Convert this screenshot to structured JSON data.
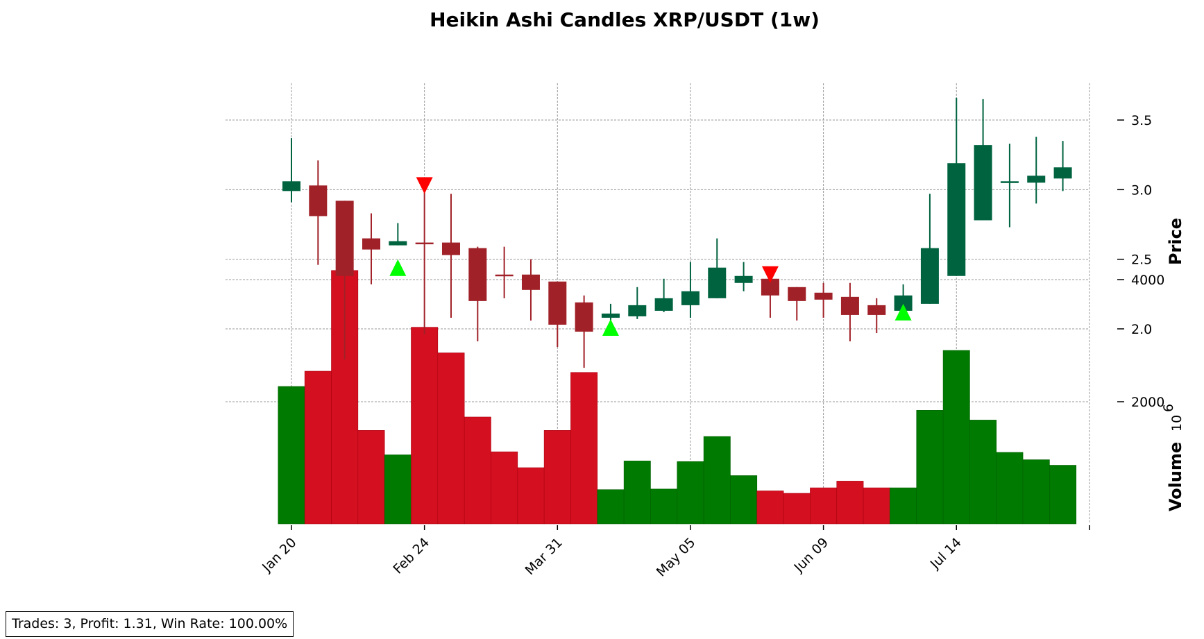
{
  "figure": {
    "title": "Heikin Ashi Candles XRP/USDT (1w)",
    "price_label": "Price",
    "volume_label": "Volume",
    "volume_multiplier_label": "10",
    "volume_multiplier_exponent": "6",
    "stats_text": "Trades: 3, Profit: 1.31, Win Rate: 100.00%"
  },
  "colors": {
    "up_candle": "#006340",
    "down_candle": "#A02128",
    "up_volume": "#007A00",
    "down_volume": "#D41020",
    "buy_marker": "#00FF00",
    "sell_marker": "#FF0000",
    "grid": "#999999"
  },
  "chart_data": {
    "type": "candlestick",
    "title": "Heikin Ashi Candles XRP/USDT (1w)",
    "ylabel": "Price",
    "ylabel_volume": "Volume",
    "volume_scale": "10^6",
    "price_ylim": [
      1.6,
      3.75
    ],
    "volume_ylim": [
      0,
      4000
    ],
    "price_ticks": [
      "2.0",
      "2.5",
      "3.0",
      "3.5"
    ],
    "volume_ticks": [
      "2000",
      "4000"
    ],
    "grid": true,
    "x_tick_labels": [
      {
        "index": 0,
        "label": "Jan 20"
      },
      {
        "index": 5,
        "label": "Feb 24"
      },
      {
        "index": 10,
        "label": "Mar 31"
      },
      {
        "index": 15,
        "label": "May 05"
      },
      {
        "index": 20,
        "label": "Jun 09"
      },
      {
        "index": 25,
        "label": "Jul 14"
      }
    ],
    "candles": [
      {
        "open": 2.99,
        "high": 3.37,
        "low": 2.91,
        "close": 3.06,
        "volume": 2250
      },
      {
        "open": 3.03,
        "high": 3.21,
        "low": 2.46,
        "close": 2.81,
        "volume": 2500
      },
      {
        "open": 2.92,
        "high": 2.92,
        "low": 1.78,
        "close": 2.38,
        "volume": 4150
      },
      {
        "open": 2.65,
        "high": 2.83,
        "low": 2.32,
        "close": 2.57,
        "volume": 1530
      },
      {
        "open": 2.6,
        "high": 2.76,
        "low": 2.6,
        "close": 2.63,
        "volume": 1130
      },
      {
        "open": 2.62,
        "high": 3.04,
        "low": 1.96,
        "close": 2.61,
        "volume": 3220
      },
      {
        "open": 2.62,
        "high": 2.97,
        "low": 2.08,
        "close": 2.53,
        "volume": 2800
      },
      {
        "open": 2.58,
        "high": 2.59,
        "low": 1.91,
        "close": 2.2,
        "volume": 1750
      },
      {
        "open": 2.39,
        "high": 2.59,
        "low": 2.22,
        "close": 2.38,
        "volume": 1180
      },
      {
        "open": 2.39,
        "high": 2.5,
        "low": 2.06,
        "close": 2.28,
        "volume": 920
      },
      {
        "open": 2.34,
        "high": 2.34,
        "low": 1.87,
        "close": 2.03,
        "volume": 1530
      },
      {
        "open": 2.19,
        "high": 2.24,
        "low": 1.72,
        "close": 1.98,
        "volume": 2480
      },
      {
        "open": 2.08,
        "high": 2.18,
        "low": 2.06,
        "close": 2.11,
        "volume": 560
      },
      {
        "open": 2.09,
        "high": 2.3,
        "low": 2.07,
        "close": 2.17,
        "volume": 1030
      },
      {
        "open": 2.13,
        "high": 2.36,
        "low": 2.12,
        "close": 2.22,
        "volume": 570
      },
      {
        "open": 2.17,
        "high": 2.48,
        "low": 2.08,
        "close": 2.27,
        "volume": 1020
      },
      {
        "open": 2.22,
        "high": 2.65,
        "low": 2.22,
        "close": 2.44,
        "volume": 1430
      },
      {
        "open": 2.33,
        "high": 2.48,
        "low": 2.27,
        "close": 2.38,
        "volume": 790
      },
      {
        "open": 2.36,
        "high": 2.36,
        "low": 2.08,
        "close": 2.24,
        "volume": 540
      },
      {
        "open": 2.3,
        "high": 2.3,
        "low": 2.06,
        "close": 2.2,
        "volume": 500
      },
      {
        "open": 2.26,
        "high": 2.33,
        "low": 2.08,
        "close": 2.21,
        "volume": 590
      },
      {
        "open": 2.23,
        "high": 2.33,
        "low": 1.91,
        "close": 2.1,
        "volume": 700
      },
      {
        "open": 2.17,
        "high": 2.22,
        "low": 1.97,
        "close": 2.1,
        "volume": 590
      },
      {
        "open": 2.13,
        "high": 2.32,
        "low": 2.13,
        "close": 2.24,
        "volume": 590
      },
      {
        "open": 2.18,
        "high": 2.97,
        "low": 2.18,
        "close": 2.58,
        "volume": 1860
      },
      {
        "open": 2.38,
        "high": 3.66,
        "low": 2.38,
        "close": 3.19,
        "volume": 2840
      },
      {
        "open": 2.78,
        "high": 3.65,
        "low": 2.78,
        "close": 3.32,
        "volume": 1700
      },
      {
        "open": 3.06,
        "high": 3.33,
        "low": 2.73,
        "close": 3.06,
        "volume": 1170
      },
      {
        "open": 3.05,
        "high": 3.38,
        "low": 2.9,
        "close": 3.1,
        "volume": 1050
      },
      {
        "open": 3.08,
        "high": 3.35,
        "low": 2.99,
        "close": 3.16,
        "volume": 960
      }
    ],
    "markers": [
      {
        "index": 4,
        "type": "buy",
        "price": 2.44
      },
      {
        "index": 5,
        "type": "sell",
        "price": 3.03
      },
      {
        "index": 12,
        "type": "buy",
        "price": 2.01
      },
      {
        "index": 18,
        "type": "sell",
        "price": 2.39
      },
      {
        "index": 23,
        "type": "buy",
        "price": 2.12
      }
    ]
  }
}
